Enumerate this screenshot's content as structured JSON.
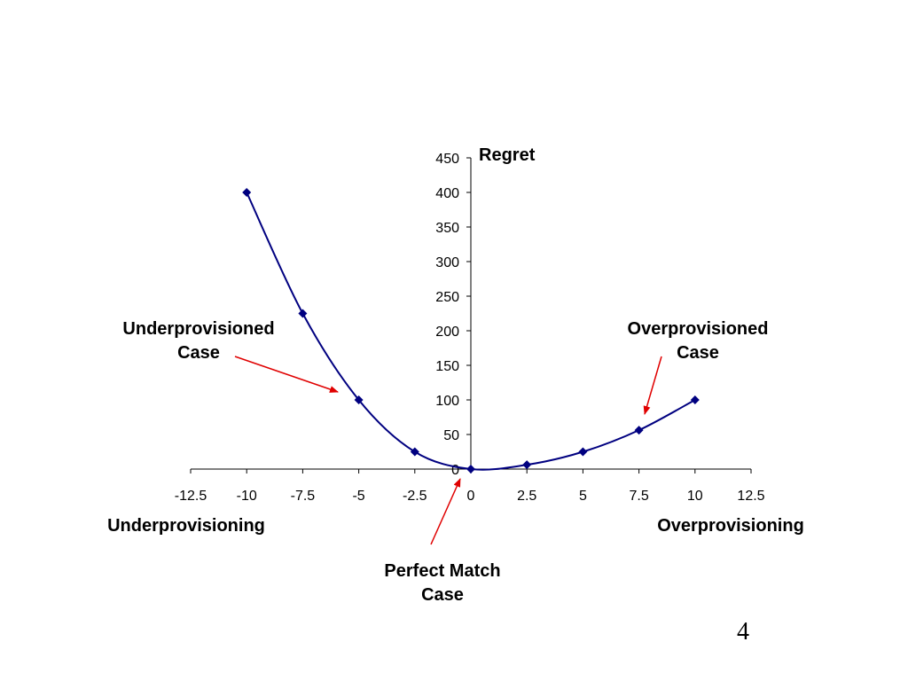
{
  "slide": {
    "page_number": "4"
  },
  "chart_data": {
    "type": "scatter",
    "ylabel": "Regret",
    "x_left_label": "Underprovisioning",
    "x_right_label": "Overprovisioning",
    "xlim": [
      -12.5,
      12.5
    ],
    "ylim": [
      0,
      450
    ],
    "x_ticks": [
      "-12.5",
      "-10",
      "-7.5",
      "-5",
      "-2.5",
      "0",
      "2.5",
      "5",
      "7.5",
      "10",
      "12.5"
    ],
    "y_ticks": [
      "0",
      "50",
      "100",
      "150",
      "200",
      "250",
      "300",
      "350",
      "400",
      "450"
    ],
    "grid": false,
    "series": [
      {
        "color": "#000080",
        "smooth": true,
        "points": [
          {
            "x": -10,
            "y": 400
          },
          {
            "x": -7.5,
            "y": 225
          },
          {
            "x": -5,
            "y": 100
          },
          {
            "x": -2.5,
            "y": 25
          },
          {
            "x": 0,
            "y": 0
          },
          {
            "x": 2.5,
            "y": 6.25
          },
          {
            "x": 5,
            "y": 25
          },
          {
            "x": 7.5,
            "y": 56.25
          },
          {
            "x": 10,
            "y": 100
          }
        ]
      }
    ],
    "annotations": [
      {
        "id": "under",
        "lines": [
          "Underprovisioned",
          "Case"
        ]
      },
      {
        "id": "over",
        "lines": [
          "Overprovisioned",
          "Case"
        ]
      },
      {
        "id": "perfect",
        "lines": [
          "Perfect Match",
          "Case"
        ]
      }
    ],
    "arrow_color": "#e00000"
  }
}
